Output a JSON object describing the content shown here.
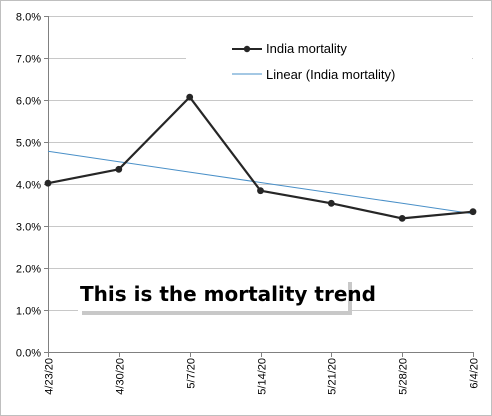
{
  "chart_data": {
    "type": "line",
    "x": [
      "4/23/20",
      "4/30/20",
      "5/7/20",
      "5/14/20",
      "5/21/20",
      "5/28/20",
      "6/4/20"
    ],
    "series": [
      {
        "name": "India mortality",
        "values": [
          0.0402,
          0.0435,
          0.0607,
          0.0384,
          0.0354,
          0.0318,
          0.0334
        ],
        "color": "#262626",
        "marker": "circle"
      },
      {
        "name": "Linear (India mortality)",
        "values": [
          0.0478,
          0.04532,
          0.04284,
          0.04036,
          0.03788,
          0.0354,
          0.03292
        ],
        "color": "#4a90c8",
        "trendline": "linear"
      }
    ],
    "ylim": [
      0,
      0.08
    ],
    "y_ticks": [
      "0.0%",
      "1.0%",
      "2.0%",
      "3.0%",
      "4.0%",
      "5.0%",
      "6.0%",
      "7.0%",
      "8.0%"
    ],
    "y_tick_values": [
      0,
      0.01,
      0.02,
      0.03,
      0.04,
      0.05,
      0.06,
      0.07,
      0.08
    ],
    "grid": "horizontal",
    "legend_position": "top-right",
    "annotation": "This is the mortality trend",
    "title": "",
    "xlabel": "",
    "ylabel": ""
  }
}
